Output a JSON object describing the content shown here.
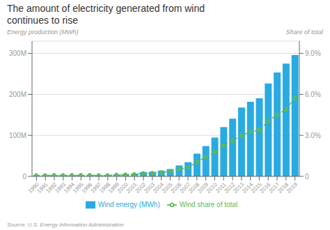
{
  "chart_data": {
    "type": "bar",
    "title": "The amount of electricity generated from wind\ncontinues to rise",
    "y_label": "Energy production (MWh)",
    "y2_label": "Share of total",
    "annotations": [
      "Source: U.S. Energy Information Administration"
    ],
    "categories": [
      "1990",
      "1991",
      "1992",
      "1993",
      "1994",
      "1995",
      "1996",
      "1997",
      "1998",
      "1999",
      "2000",
      "2001",
      "2002",
      "2003",
      "2004",
      "2005",
      "2006",
      "2007",
      "2008",
      "2009",
      "2010",
      "2011",
      "2012",
      "2013",
      "2014",
      "2015",
      "2016",
      "2017",
      "2018",
      "2019"
    ],
    "series": [
      {
        "name": "Wind energy (MWh)",
        "type": "bar",
        "color": "#29ABE2",
        "values": [
          3.0,
          3.2,
          3.3,
          3.1,
          3.5,
          3.3,
          3.6,
          3.3,
          3.1,
          4.5,
          5.6,
          6.7,
          10.4,
          11.2,
          14.1,
          17.8,
          26.6,
          34.5,
          55.4,
          73.9,
          94.6,
          120.2,
          140.8,
          167.8,
          181.8,
          190.7,
          226.5,
          253.6,
          275.1,
          295.9
        ]
      },
      {
        "name": "Wind share of total",
        "type": "line",
        "axis": "y2",
        "color": "#5CB85C",
        "line_style": "dashed",
        "marker": "circle",
        "values": [
          0.07,
          0.07,
          0.08,
          0.07,
          0.08,
          0.08,
          0.08,
          0.07,
          0.07,
          0.1,
          0.12,
          0.14,
          0.22,
          0.23,
          0.28,
          0.37,
          0.52,
          0.66,
          1.04,
          1.42,
          1.77,
          2.24,
          2.6,
          3.0,
          3.26,
          3.39,
          4.03,
          4.52,
          4.9,
          5.75
        ]
      }
    ],
    "ylim": [
      0,
      330
    ],
    "yticks": [
      0,
      {
        "value": 100,
        "label": "100M"
      },
      {
        "value": 200,
        "label": "200M"
      },
      {
        "value": 300,
        "label": "300M"
      }
    ],
    "y2lim": [
      0,
      9.9
    ],
    "y2ticks": [
      0,
      {
        "value": 3.0,
        "label": "3.0%"
      },
      {
        "value": 6.0,
        "label": "6.0%"
      },
      {
        "value": 9.0,
        "label": "9.0%"
      }
    ],
    "grid": true,
    "legend": "bottom"
  }
}
